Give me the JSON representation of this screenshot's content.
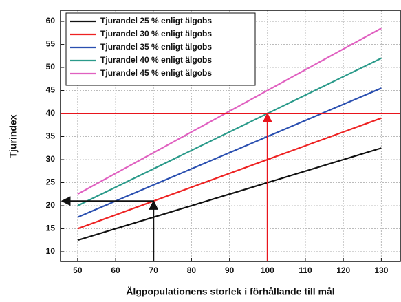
{
  "chart_data": {
    "type": "line",
    "x_label": "Älgpopulationens storlek i förhållande till mål",
    "y_label": "Tjurindex",
    "x": [
      50,
      130
    ],
    "series": [
      {
        "name": "Tjurandel 25 % enligt älgobs",
        "color": "#111111",
        "values": [
          12.5,
          32.5
        ]
      },
      {
        "name": "Tjurandel 30 % enligt älgobs",
        "color": "#ee2222",
        "values": [
          15,
          39
        ]
      },
      {
        "name": "Tjurandel 35 % enligt älgobs",
        "color": "#2a4fb0",
        "values": [
          17.5,
          45.5
        ]
      },
      {
        "name": "Tjurandel 40 % enligt älgobs",
        "color": "#2a9a8a",
        "values": [
          20,
          52
        ]
      },
      {
        "name": "Tjurandel 45 % enligt älgobs",
        "color": "#e060c0",
        "values": [
          22.5,
          58.5
        ]
      }
    ],
    "guides": [
      {
        "x": 100,
        "y": 40,
        "color": "#e8141c",
        "span": "full"
      },
      {
        "x": 70,
        "y": 21,
        "color": "#111111",
        "span": "left"
      }
    ],
    "xlim": [
      45.5,
      135
    ],
    "ylim": [
      7.9,
      62.4
    ],
    "xticks": [
      50,
      60,
      70,
      80,
      90,
      100,
      110,
      120,
      130
    ],
    "yticks": [
      10,
      15,
      20,
      25,
      30,
      35,
      40,
      45,
      50,
      55,
      60
    ],
    "grid": true,
    "legend": "upper-left"
  }
}
